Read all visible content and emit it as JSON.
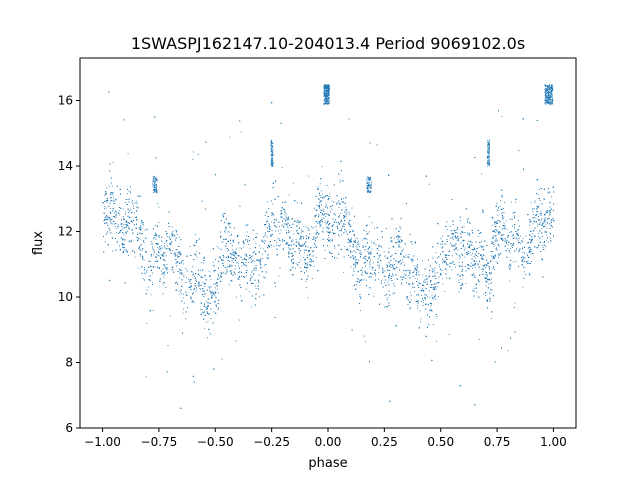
{
  "chart_data": {
    "type": "scatter",
    "title": "1SWASPJ162147.10-204013.4 Period 9069102.0s",
    "xlabel": "phase",
    "ylabel": "flux",
    "xlim": [
      -1.1,
      1.1
    ],
    "ylim": [
      6.0,
      17.3
    ],
    "x_ticks": [
      -1.0,
      -0.75,
      -0.5,
      -0.25,
      0.0,
      0.25,
      0.5,
      0.75,
      1.0
    ],
    "x_tick_labels": [
      "−1.00",
      "−0.75",
      "−0.50",
      "−0.25",
      "0.00",
      "0.25",
      "0.50",
      "0.75",
      "1.00"
    ],
    "y_ticks": [
      6,
      8,
      10,
      12,
      14,
      16
    ],
    "y_tick_labels": [
      "6",
      "8",
      "10",
      "12",
      "14",
      "16"
    ],
    "grid": false,
    "legend": "none",
    "point_color": "#1f77b4",
    "series": [
      {
        "name": "",
        "trend": [
          [
            -1.0,
            12.4
          ],
          [
            -0.97,
            12.8
          ],
          [
            -0.94,
            12.5
          ],
          [
            -0.91,
            11.9
          ],
          [
            -0.88,
            12.6
          ],
          [
            -0.85,
            12.2
          ],
          [
            -0.82,
            11.3
          ],
          [
            -0.79,
            10.9
          ],
          [
            -0.76,
            11.6
          ],
          [
            -0.73,
            11.0
          ],
          [
            -0.7,
            11.8
          ],
          [
            -0.67,
            11.3
          ],
          [
            -0.64,
            10.2
          ],
          [
            -0.61,
            10.6
          ],
          [
            -0.58,
            10.9
          ],
          [
            -0.55,
            10.1
          ],
          [
            -0.52,
            9.9
          ],
          [
            -0.49,
            10.6
          ],
          [
            -0.46,
            11.8
          ],
          [
            -0.43,
            11.3
          ],
          [
            -0.4,
            10.9
          ],
          [
            -0.37,
            11.4
          ],
          [
            -0.34,
            11.0
          ],
          [
            -0.31,
            10.6
          ],
          [
            -0.28,
            11.8
          ],
          [
            -0.25,
            12.3
          ],
          [
            -0.22,
            12.0
          ],
          [
            -0.19,
            12.4
          ],
          [
            -0.16,
            11.5
          ],
          [
            -0.13,
            11.9
          ],
          [
            -0.1,
            11.2
          ],
          [
            -0.07,
            11.5
          ],
          [
            -0.04,
            12.8
          ],
          [
            -0.01,
            12.3
          ],
          [
            0.02,
            12.0
          ],
          [
            0.05,
            12.6
          ],
          [
            0.08,
            12.2
          ],
          [
            0.11,
            11.5
          ],
          [
            0.14,
            10.8
          ],
          [
            0.17,
            11.6
          ],
          [
            0.2,
            11.0
          ],
          [
            0.23,
            11.4
          ],
          [
            0.26,
            10.5
          ],
          [
            0.29,
            11.2
          ],
          [
            0.32,
            11.6
          ],
          [
            0.35,
            10.4
          ],
          [
            0.38,
            10.8
          ],
          [
            0.41,
            10.0
          ],
          [
            0.44,
            10.2
          ],
          [
            0.47,
            10.4
          ],
          [
            0.5,
            11.0
          ],
          [
            0.53,
            11.5
          ],
          [
            0.56,
            11.9
          ],
          [
            0.59,
            11.2
          ],
          [
            0.62,
            11.6
          ],
          [
            0.65,
            10.8
          ],
          [
            0.68,
            11.4
          ],
          [
            0.71,
            10.3
          ],
          [
            0.74,
            11.8
          ],
          [
            0.77,
            12.4
          ],
          [
            0.8,
            11.6
          ],
          [
            0.83,
            12.2
          ],
          [
            0.86,
            11.2
          ],
          [
            0.89,
            11.5
          ],
          [
            0.92,
            12.6
          ],
          [
            0.95,
            12.0
          ],
          [
            0.98,
            12.5
          ],
          [
            1.0,
            12.4
          ]
        ],
        "spread": 0.85,
        "point_count": 9000,
        "clusters": [
          {
            "x": [
              -0.02,
              0.005
            ],
            "y": [
              15.9,
              16.5
            ],
            "count": 260
          },
          {
            "x": [
              0.96,
              0.995
            ],
            "y": [
              15.9,
              16.5
            ],
            "count": 260
          },
          {
            "x": [
              -0.255,
              -0.245
            ],
            "y": [
              14.0,
              14.8
            ],
            "count": 90
          },
          {
            "x": [
              0.705,
              0.715
            ],
            "y": [
              14.0,
              14.8
            ],
            "count": 90
          },
          {
            "x": [
              -0.78,
              -0.76
            ],
            "y": [
              13.2,
              13.7
            ],
            "count": 80
          },
          {
            "x": [
              0.17,
              0.19
            ],
            "y": [
              13.2,
              13.7
            ],
            "count": 80
          }
        ]
      }
    ]
  }
}
